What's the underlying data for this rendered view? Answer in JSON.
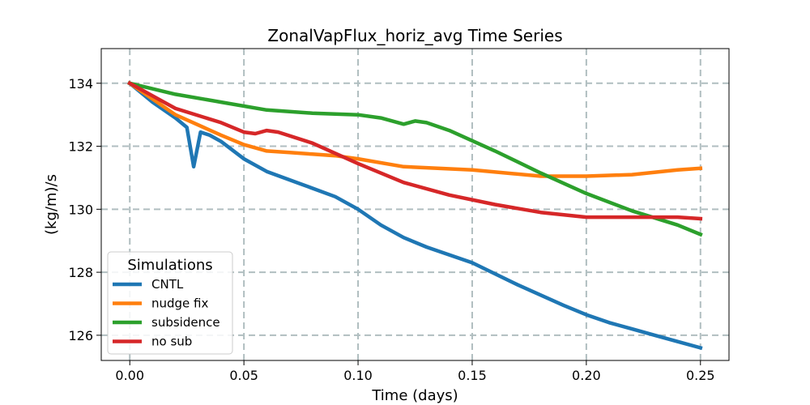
{
  "chart_data": {
    "type": "line",
    "title": "ZonalVapFlux_horiz_avg Time Series",
    "xlabel": "Time (days)",
    "ylabel": "(kg/m)/s",
    "xlim": [
      -0.0125,
      0.2625
    ],
    "ylim": [
      125.2,
      135.1
    ],
    "xticks": [
      0.0,
      0.05,
      0.1,
      0.15,
      0.2,
      0.25
    ],
    "xtick_labels": [
      "0.00",
      "0.05",
      "0.10",
      "0.15",
      "0.20",
      "0.25"
    ],
    "yticks": [
      126,
      128,
      130,
      132,
      134
    ],
    "ytick_labels": [
      "126",
      "128",
      "130",
      "132",
      "134"
    ],
    "grid": true,
    "legend": {
      "title": "Simulations",
      "placement": "lower-left"
    },
    "series": [
      {
        "name": "CNTL",
        "color": "#1f77b4",
        "x": [
          0.0,
          0.01,
          0.02,
          0.025,
          0.028,
          0.031,
          0.035,
          0.04,
          0.05,
          0.06,
          0.075,
          0.09,
          0.1,
          0.11,
          0.12,
          0.13,
          0.15,
          0.17,
          0.19,
          0.2,
          0.21,
          0.22,
          0.23,
          0.24,
          0.25
        ],
        "y": [
          134.0,
          133.4,
          132.9,
          132.6,
          131.35,
          132.45,
          132.35,
          132.15,
          131.6,
          131.2,
          130.8,
          130.4,
          130.0,
          129.5,
          129.1,
          128.8,
          128.3,
          127.6,
          126.95,
          126.65,
          126.4,
          126.2,
          126.0,
          125.8,
          125.6
        ]
      },
      {
        "name": "nudge fix",
        "color": "#ff7f0e",
        "x": [
          0.0,
          0.02,
          0.04,
          0.05,
          0.06,
          0.07,
          0.08,
          0.09,
          0.1,
          0.12,
          0.15,
          0.18,
          0.2,
          0.22,
          0.24,
          0.25
        ],
        "y": [
          134.0,
          133.0,
          132.35,
          132.05,
          131.85,
          131.8,
          131.75,
          131.7,
          131.6,
          131.35,
          131.25,
          131.05,
          131.05,
          131.1,
          131.25,
          131.3
        ]
      },
      {
        "name": "subsidence",
        "color": "#2ca02c",
        "x": [
          0.0,
          0.02,
          0.04,
          0.06,
          0.08,
          0.1,
          0.11,
          0.115,
          0.12,
          0.125,
          0.13,
          0.14,
          0.16,
          0.18,
          0.2,
          0.22,
          0.24,
          0.25
        ],
        "y": [
          134.0,
          133.65,
          133.4,
          133.15,
          133.05,
          133.0,
          132.9,
          132.8,
          132.7,
          132.8,
          132.75,
          132.5,
          131.85,
          131.15,
          130.5,
          129.95,
          129.5,
          129.2
        ]
      },
      {
        "name": "no sub",
        "color": "#d62728",
        "x": [
          0.0,
          0.02,
          0.04,
          0.05,
          0.055,
          0.06,
          0.065,
          0.08,
          0.1,
          0.12,
          0.14,
          0.16,
          0.18,
          0.2,
          0.22,
          0.24,
          0.25
        ],
        "y": [
          134.0,
          133.2,
          132.75,
          132.45,
          132.4,
          132.5,
          132.45,
          132.1,
          131.45,
          130.85,
          130.45,
          130.15,
          129.9,
          129.75,
          129.75,
          129.75,
          129.7
        ]
      }
    ]
  }
}
